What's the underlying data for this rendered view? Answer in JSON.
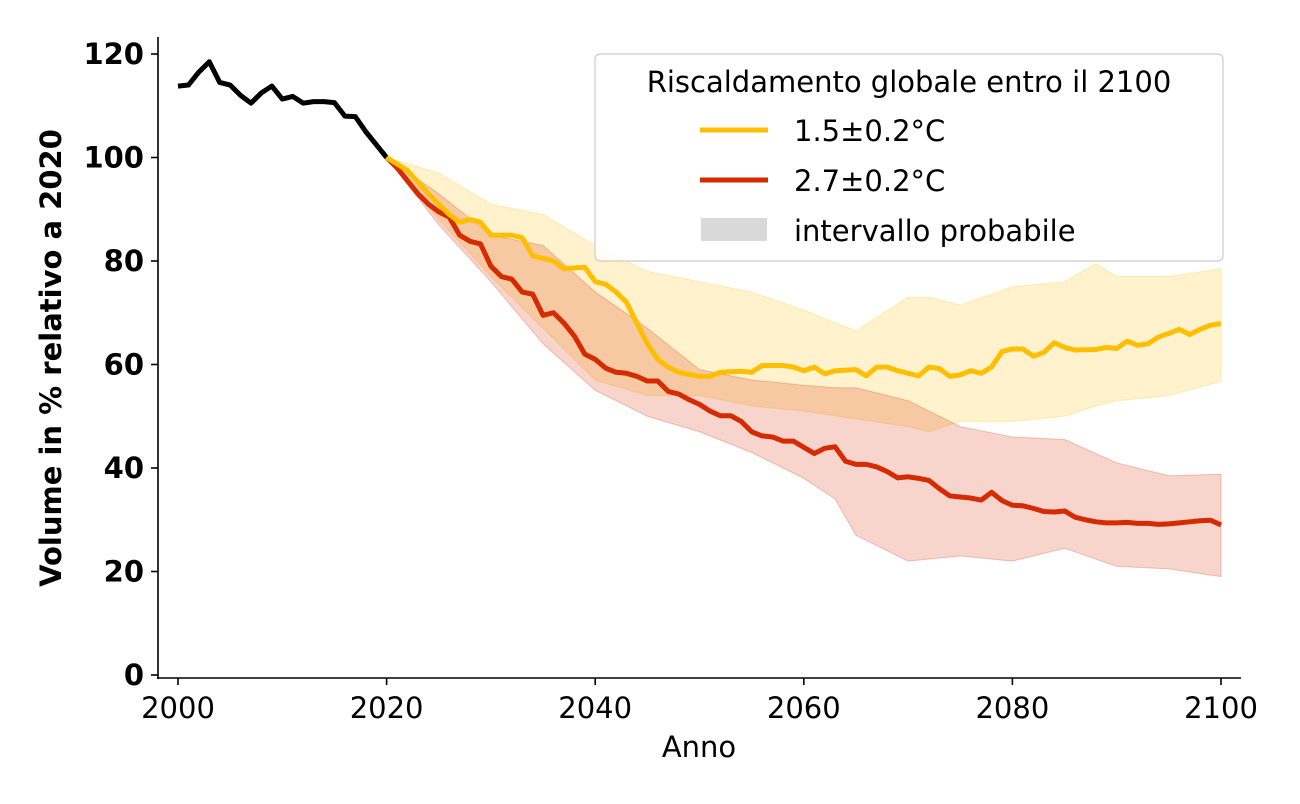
{
  "chart_data": {
    "type": "line",
    "title": "",
    "xlabel": "Anno",
    "ylabel": "Volume in % relativo a 2020",
    "xlim": [
      1998,
      2102
    ],
    "ylim": [
      -1,
      124
    ],
    "xticks": [
      2000,
      2020,
      2040,
      2060,
      2080,
      2100
    ],
    "yticks": [
      0,
      20,
      40,
      60,
      80,
      100,
      120
    ],
    "grid": false,
    "legend": {
      "title": "Riscaldamento globale entro il 2100",
      "placement": "top-right",
      "entries": [
        "1.5±0.2°C",
        "2.7±0.2°C",
        "intervallo probabile"
      ]
    },
    "colors": {
      "historical": "#000000",
      "low": "#FFBF00",
      "high": "#D62A00",
      "range_swatch": "#D9D9D9"
    },
    "historical": {
      "x": [
        2000,
        2001,
        2002,
        2003,
        2004,
        2005,
        2006,
        2007,
        2008,
        2009,
        2010,
        2011,
        2012,
        2013,
        2014,
        2015,
        2016,
        2017,
        2018,
        2019,
        2020
      ],
      "y": [
        113.8,
        114,
        116.5,
        118.5,
        114.5,
        114,
        112,
        110.5,
        112.5,
        113.8,
        111.3,
        111.8,
        110.5,
        110.8,
        110.8,
        110.6,
        108,
        107.9,
        105,
        102.5,
        100
      ]
    },
    "series": [
      {
        "name": "1.5±0.2°C",
        "x": [
          2020,
          2022,
          2024,
          2026,
          2027,
          2028,
          2029,
          2030,
          2032,
          2033,
          2034,
          2036,
          2037,
          2039,
          2040,
          2041,
          2042,
          2043,
          2044,
          2045,
          2046,
          2047,
          2048,
          2050,
          2051,
          2052,
          2054,
          2055,
          2056,
          2058,
          2059,
          2060,
          2061,
          2062,
          2063,
          2065,
          2066,
          2067,
          2068,
          2069,
          2071,
          2072,
          2073,
          2074,
          2075,
          2076,
          2077,
          2078,
          2079,
          2080,
          2081,
          2082,
          2083,
          2084,
          2085,
          2086,
          2088,
          2089,
          2090,
          2091,
          2092,
          2093,
          2094,
          2095,
          2096,
          2097,
          2098,
          2099,
          2100
        ],
        "y": [
          100,
          97.5,
          93,
          89,
          87.5,
          88,
          87.5,
          85,
          85,
          84.5,
          81,
          80,
          78.5,
          78.8,
          76,
          75.5,
          74,
          72,
          68,
          64,
          61,
          59.5,
          58.5,
          57.7,
          57.7,
          58.5,
          58.7,
          58.5,
          59.8,
          59.8,
          59.5,
          58.8,
          59.5,
          58.2,
          58.8,
          59,
          57.8,
          59.5,
          59.5,
          58.8,
          57.8,
          59.5,
          59.2,
          57.7,
          58,
          58.8,
          58.3,
          59.5,
          62.5,
          63,
          63,
          61.6,
          62.3,
          64.2,
          63.3,
          62.8,
          62.9,
          63.3,
          63.1,
          64.5,
          63.7,
          64,
          65.3,
          66,
          66.8,
          65.8,
          66.8,
          67.6,
          67.9
        ],
        "range": {
          "x": [
            2020,
            2025,
            2030,
            2035,
            2040,
            2045,
            2050,
            2055,
            2060,
            2065,
            2070,
            2072,
            2075,
            2080,
            2085,
            2088,
            2090,
            2095,
            2100
          ],
          "upper": [
            100,
            97,
            91,
            89,
            83,
            78,
            76,
            74,
            70.5,
            66.5,
            73,
            73,
            71.5,
            75,
            76,
            79.5,
            77,
            77,
            78.5
          ],
          "lower": [
            100,
            88,
            77,
            67,
            57,
            54,
            54,
            52,
            51,
            49.5,
            48,
            47,
            49,
            49,
            50,
            52,
            53,
            54,
            56.7
          ]
        }
      },
      {
        "name": "2.7±0.2°C",
        "x": [
          2020,
          2021,
          2022,
          2023,
          2024,
          2025,
          2026,
          2027,
          2028,
          2029,
          2030,
          2031,
          2032,
          2033,
          2034,
          2035,
          2036,
          2037,
          2038,
          2039,
          2040,
          2041,
          2042,
          2043,
          2044,
          2045,
          2046,
          2047,
          2048,
          2049,
          2050,
          2051,
          2052,
          2053,
          2054,
          2055,
          2056,
          2057,
          2058,
          2059,
          2060,
          2061,
          2062,
          2063,
          2064,
          2065,
          2066,
          2067,
          2068,
          2069,
          2070,
          2071,
          2072,
          2073,
          2074,
          2075,
          2076,
          2077,
          2078,
          2079,
          2080,
          2081,
          2082,
          2083,
          2084,
          2085,
          2086,
          2087,
          2088,
          2089,
          2090,
          2091,
          2092,
          2093,
          2094,
          2095,
          2096,
          2097,
          2098,
          2099,
          2100
        ],
        "y": [
          100,
          98,
          95.5,
          93,
          91,
          89.5,
          88.5,
          85,
          83.8,
          83.3,
          79,
          77,
          76.5,
          74,
          73.6,
          69.5,
          70,
          68,
          65.5,
          62,
          61,
          59.3,
          58.5,
          58.3,
          57.7,
          56.8,
          56.8,
          54.8,
          54.3,
          53.2,
          52.3,
          51,
          50.1,
          50.1,
          49,
          47,
          46.2,
          46,
          45.2,
          45.2,
          44,
          42.8,
          43.8,
          44.1,
          41.3,
          40.7,
          40.7,
          40.2,
          39.3,
          38.1,
          38.3,
          38,
          37.6,
          36,
          34.6,
          34.4,
          34.2,
          33.8,
          35.3,
          33.7,
          32.8,
          32.7,
          32.2,
          31.6,
          31.5,
          31.7,
          30.5,
          30,
          29.6,
          29.4,
          29.4,
          29.5,
          29.3,
          29.3,
          29.1,
          29.2,
          29.4,
          29.6,
          29.8,
          29.9,
          29
        ],
        "range": {
          "x": [
            2020,
            2025,
            2030,
            2035,
            2040,
            2045,
            2050,
            2055,
            2060,
            2063,
            2065,
            2070,
            2075,
            2080,
            2085,
            2090,
            2095,
            2100
          ],
          "upper": [
            100,
            93,
            85,
            83,
            74,
            67,
            59,
            57,
            56,
            55.5,
            55.5,
            53,
            48,
            46,
            45.5,
            41,
            38.5,
            38.8
          ],
          "lower": [
            100,
            87,
            76,
            64,
            55,
            50,
            47,
            43,
            38,
            34,
            27,
            22,
            23,
            22,
            24.5,
            21,
            20.5,
            19
          ]
        }
      }
    ]
  }
}
